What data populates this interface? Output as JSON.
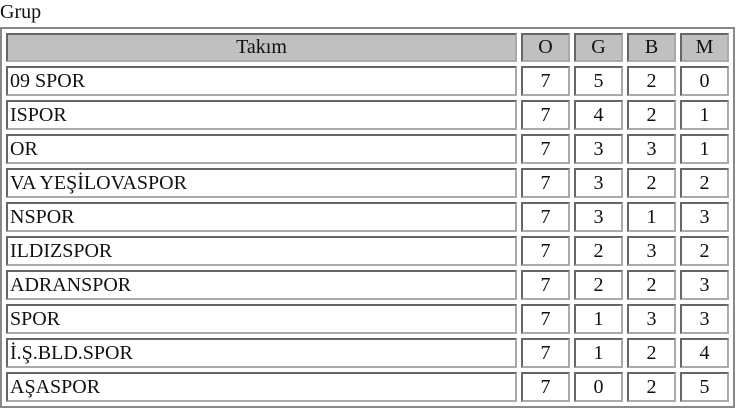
{
  "caption": "Grup",
  "headers": {
    "team": "Takım",
    "o": "O",
    "g": "G",
    "b": "B",
    "m": "M"
  },
  "rows": [
    {
      "team": "09 SPOR",
      "o": "7",
      "g": "5",
      "b": "2",
      "m": "0"
    },
    {
      "team": "ISPOR",
      "o": "7",
      "g": "4",
      "b": "2",
      "m": "1"
    },
    {
      "team": "OR",
      "o": "7",
      "g": "3",
      "b": "3",
      "m": "1"
    },
    {
      "team": "VA YEŞİLOVASPOR",
      "o": "7",
      "g": "3",
      "b": "2",
      "m": "2"
    },
    {
      "team": "NSPOR",
      "o": "7",
      "g": "3",
      "b": "1",
      "m": "3"
    },
    {
      "team": "ILDIZSPOR",
      "o": "7",
      "g": "2",
      "b": "3",
      "m": "2"
    },
    {
      "team": "ADRANSPOR",
      "o": "7",
      "g": "2",
      "b": "2",
      "m": "3"
    },
    {
      "team": "SPOR",
      "o": "7",
      "g": "1",
      "b": "3",
      "m": "3"
    },
    {
      "team": "İ.Ş.BLD.SPOR",
      "o": "7",
      "g": "1",
      "b": "2",
      "m": "4"
    },
    {
      "team": "AŞASPOR",
      "o": "7",
      "g": "0",
      "b": "2",
      "m": "5"
    }
  ],
  "colors": {
    "header_bg": "#c0c0c0",
    "border": "#666666"
  }
}
